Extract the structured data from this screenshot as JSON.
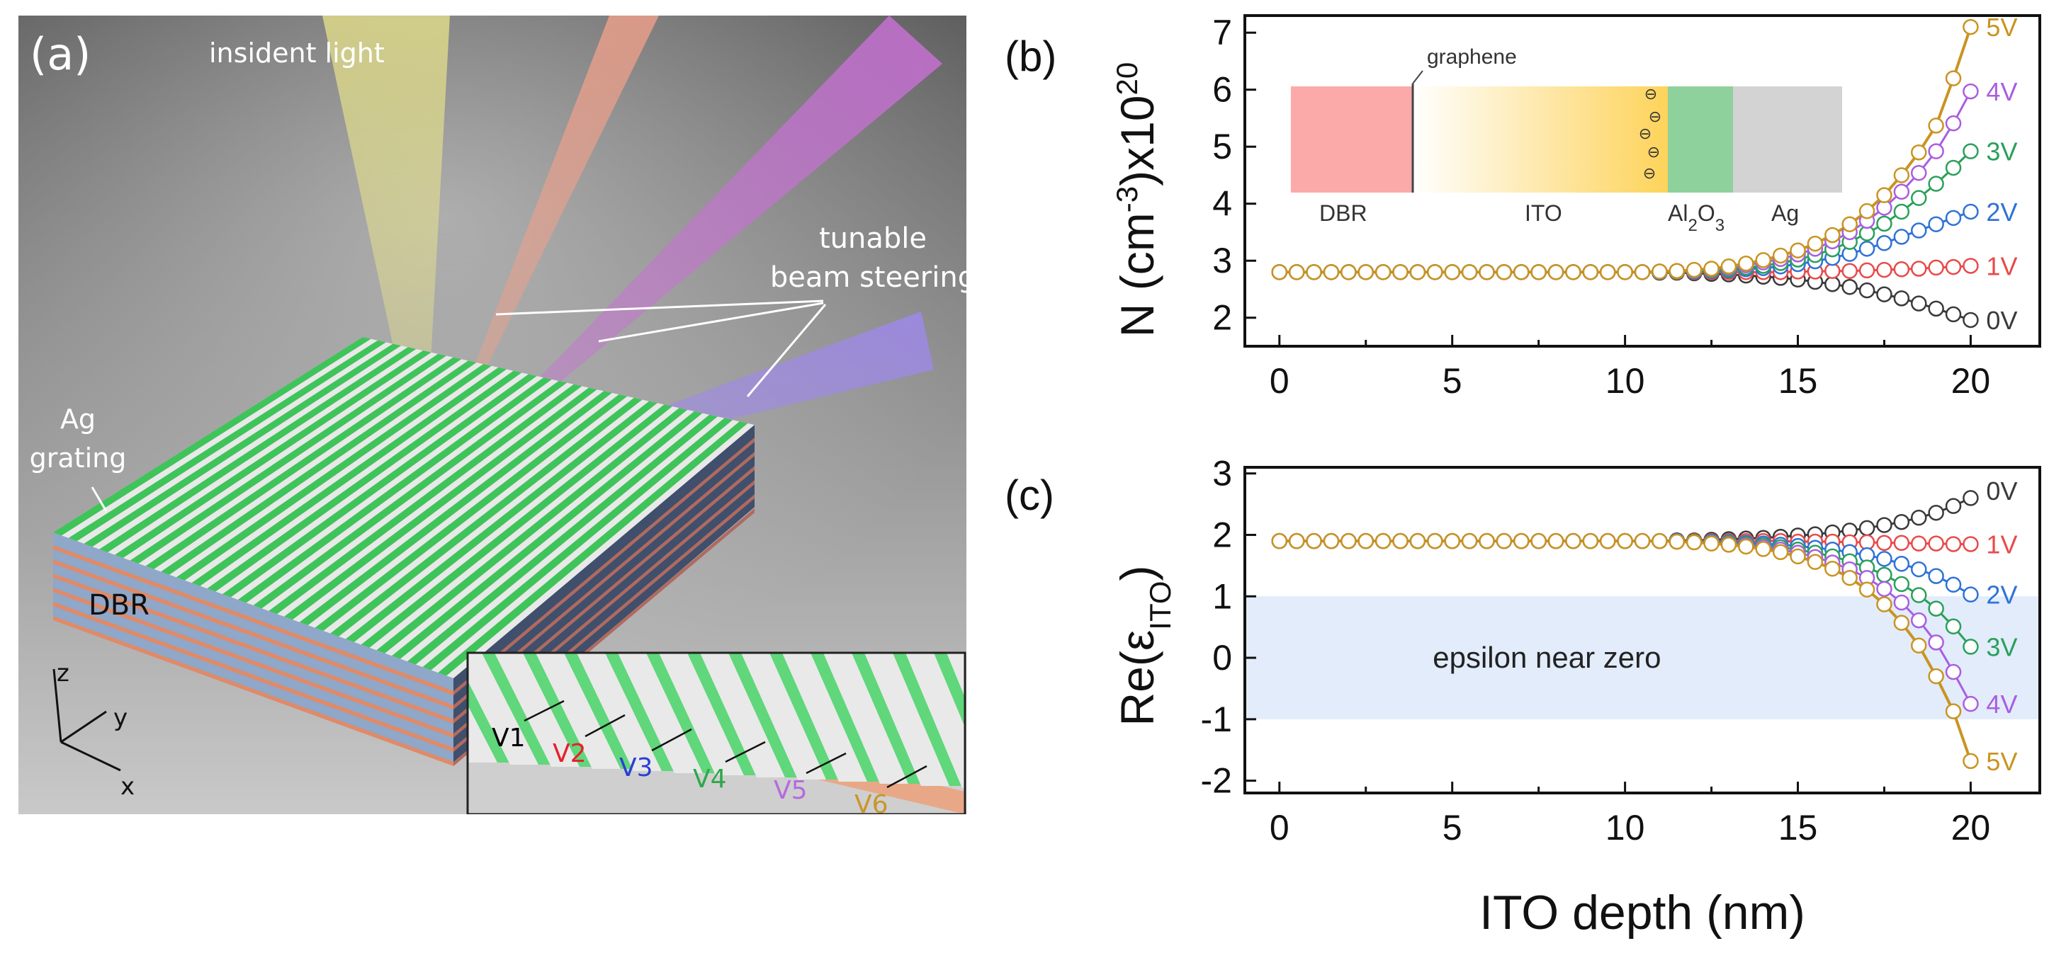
{
  "panel_a": {
    "label": "(a)",
    "incident_light": "insident light",
    "steering_line1": "tunable",
    "steering_line2": "beam steering",
    "ag_line1": "Ag",
    "ag_line2": "grating",
    "dbr": "DBR",
    "axis_z": "z",
    "axis_y": "y",
    "axis_x": "x",
    "inset_voltages": [
      {
        "label": "V1",
        "color": "#000000"
      },
      {
        "label": "V2",
        "color": "#e8202a"
      },
      {
        "label": "V3",
        "color": "#2b3fd6"
      },
      {
        "label": "V4",
        "color": "#2ea84a"
      },
      {
        "label": "V5",
        "color": "#b46be0"
      },
      {
        "label": "V6",
        "color": "#c9962a"
      }
    ]
  },
  "chart_data": [
    {
      "panel": "(b)",
      "type": "line",
      "ylabel_main": "N (cm",
      "ylabel_exp1": "-3",
      "ylabel_mid": ")x10",
      "ylabel_exp2": "20",
      "xlim": [
        -1,
        22
      ],
      "ylim": [
        1.5,
        7.3
      ],
      "xticks": [
        0,
        5,
        10,
        15,
        20
      ],
      "yticks": [
        2,
        3,
        4,
        5,
        6,
        7
      ],
      "x": [
        0,
        0.5,
        1,
        1.5,
        2,
        2.5,
        3,
        3.5,
        4,
        4.5,
        5,
        5.5,
        6,
        6.5,
        7,
        7.5,
        8,
        8.5,
        9,
        9.5,
        10,
        10.5,
        11,
        11.5,
        12,
        12.5,
        13,
        13.5,
        14,
        14.5,
        15,
        15.5,
        16,
        16.5,
        17,
        17.5,
        18,
        18.5,
        19,
        19.5,
        20
      ],
      "series": [
        {
          "name": "0V",
          "color": "#3a3a3a",
          "values": [
            2.8,
            2.8,
            2.8,
            2.8,
            2.8,
            2.8,
            2.8,
            2.8,
            2.8,
            2.8,
            2.8,
            2.8,
            2.8,
            2.8,
            2.8,
            2.8,
            2.8,
            2.8,
            2.8,
            2.8,
            2.8,
            2.8,
            2.79,
            2.79,
            2.78,
            2.77,
            2.76,
            2.74,
            2.72,
            2.7,
            2.67,
            2.63,
            2.59,
            2.54,
            2.48,
            2.41,
            2.34,
            2.25,
            2.16,
            2.06,
            1.96
          ]
        },
        {
          "name": "1V",
          "color": "#e84a4a",
          "values": [
            2.8,
            2.8,
            2.8,
            2.8,
            2.8,
            2.8,
            2.8,
            2.8,
            2.8,
            2.8,
            2.8,
            2.8,
            2.8,
            2.8,
            2.8,
            2.8,
            2.8,
            2.8,
            2.8,
            2.8,
            2.8,
            2.8,
            2.8,
            2.8,
            2.8,
            2.8,
            2.8,
            2.8,
            2.8,
            2.8,
            2.81,
            2.81,
            2.82,
            2.82,
            2.83,
            2.84,
            2.85,
            2.86,
            2.88,
            2.89,
            2.91
          ]
        },
        {
          "name": "2V",
          "color": "#2f73d6",
          "values": [
            2.8,
            2.8,
            2.8,
            2.8,
            2.8,
            2.8,
            2.8,
            2.8,
            2.8,
            2.8,
            2.8,
            2.8,
            2.8,
            2.8,
            2.8,
            2.8,
            2.8,
            2.8,
            2.8,
            2.8,
            2.8,
            2.8,
            2.8,
            2.81,
            2.81,
            2.82,
            2.83,
            2.85,
            2.87,
            2.9,
            2.94,
            2.99,
            3.05,
            3.12,
            3.21,
            3.31,
            3.42,
            3.53,
            3.64,
            3.75,
            3.86
          ]
        },
        {
          "name": "3V",
          "color": "#2aa05a",
          "values": [
            2.8,
            2.8,
            2.8,
            2.8,
            2.8,
            2.8,
            2.8,
            2.8,
            2.8,
            2.8,
            2.8,
            2.8,
            2.8,
            2.8,
            2.8,
            2.8,
            2.8,
            2.8,
            2.8,
            2.8,
            2.8,
            2.8,
            2.81,
            2.81,
            2.82,
            2.83,
            2.85,
            2.88,
            2.91,
            2.96,
            3.02,
            3.1,
            3.2,
            3.33,
            3.48,
            3.65,
            3.86,
            4.1,
            4.35,
            4.63,
            4.92
          ]
        },
        {
          "name": "4V",
          "color": "#a95ee0",
          "values": [
            2.8,
            2.8,
            2.8,
            2.8,
            2.8,
            2.8,
            2.8,
            2.8,
            2.8,
            2.8,
            2.8,
            2.8,
            2.8,
            2.8,
            2.8,
            2.8,
            2.8,
            2.8,
            2.8,
            2.8,
            2.8,
            2.8,
            2.81,
            2.82,
            2.83,
            2.85,
            2.88,
            2.92,
            2.97,
            3.03,
            3.11,
            3.21,
            3.34,
            3.5,
            3.7,
            3.93,
            4.21,
            4.54,
            4.92,
            5.41,
            5.97
          ]
        },
        {
          "name": "5V",
          "color": "#c99420",
          "values": [
            2.8,
            2.8,
            2.8,
            2.8,
            2.8,
            2.8,
            2.8,
            2.8,
            2.8,
            2.8,
            2.8,
            2.8,
            2.8,
            2.8,
            2.8,
            2.8,
            2.8,
            2.8,
            2.8,
            2.8,
            2.8,
            2.8,
            2.81,
            2.82,
            2.84,
            2.86,
            2.9,
            2.95,
            3.01,
            3.09,
            3.18,
            3.3,
            3.45,
            3.64,
            3.87,
            4.15,
            4.5,
            4.9,
            5.37,
            6.2,
            7.1
          ]
        }
      ],
      "inset": {
        "graphene": "graphene",
        "layers": [
          {
            "label": "DBR",
            "color": "#fca9a9"
          },
          {
            "label": "ITO",
            "color": "#fdd35a"
          },
          {
            "label_main": "Al",
            "label_sub1": "2",
            "label_mid": "O",
            "label_sub2": "3",
            "color": "#8fd19c"
          },
          {
            "label": "Ag",
            "color": "#d3d3d3"
          }
        ],
        "charge_symbol": "⊖"
      }
    },
    {
      "panel": "(c)",
      "type": "line",
      "ylabel_main": "Re(ε",
      "ylabel_sub": "ITO",
      "ylabel_end": ")",
      "xlabel": "ITO depth (nm)",
      "xlim": [
        -1,
        22
      ],
      "ylim": [
        -2.2,
        3.1
      ],
      "xticks": [
        0,
        5,
        10,
        15,
        20
      ],
      "yticks": [
        -2,
        -1,
        0,
        1,
        2,
        3
      ],
      "band": {
        "from": -1,
        "to": 1,
        "label": "epsilon near zero",
        "color": "#e2ecfb"
      },
      "x": [
        0,
        0.5,
        1,
        1.5,
        2,
        2.5,
        3,
        3.5,
        4,
        4.5,
        5,
        5.5,
        6,
        6.5,
        7,
        7.5,
        8,
        8.5,
        9,
        9.5,
        10,
        10.5,
        11,
        11.5,
        12,
        12.5,
        13,
        13.5,
        14,
        14.5,
        15,
        15.5,
        16,
        16.5,
        17,
        17.5,
        18,
        18.5,
        19,
        19.5,
        20
      ],
      "series": [
        {
          "name": "0V",
          "color": "#3a3a3a",
          "values": [
            1.9,
            1.9,
            1.9,
            1.9,
            1.9,
            1.9,
            1.9,
            1.9,
            1.9,
            1.9,
            1.9,
            1.9,
            1.9,
            1.9,
            1.9,
            1.9,
            1.9,
            1.9,
            1.9,
            1.9,
            1.9,
            1.9,
            1.9,
            1.91,
            1.91,
            1.92,
            1.93,
            1.94,
            1.95,
            1.97,
            1.99,
            2.01,
            2.04,
            2.07,
            2.11,
            2.16,
            2.21,
            2.28,
            2.36,
            2.47,
            2.6
          ]
        },
        {
          "name": "1V",
          "color": "#e84a4a",
          "values": [
            1.9,
            1.9,
            1.9,
            1.9,
            1.9,
            1.9,
            1.9,
            1.9,
            1.9,
            1.9,
            1.9,
            1.9,
            1.9,
            1.9,
            1.9,
            1.9,
            1.9,
            1.9,
            1.9,
            1.9,
            1.9,
            1.9,
            1.9,
            1.9,
            1.9,
            1.9,
            1.9,
            1.9,
            1.9,
            1.9,
            1.89,
            1.89,
            1.89,
            1.88,
            1.88,
            1.87,
            1.87,
            1.86,
            1.86,
            1.85,
            1.85
          ]
        },
        {
          "name": "2V",
          "color": "#2f73d6",
          "values": [
            1.9,
            1.9,
            1.9,
            1.9,
            1.9,
            1.9,
            1.9,
            1.9,
            1.9,
            1.9,
            1.9,
            1.9,
            1.9,
            1.9,
            1.9,
            1.9,
            1.9,
            1.9,
            1.9,
            1.9,
            1.9,
            1.9,
            1.9,
            1.9,
            1.89,
            1.89,
            1.88,
            1.87,
            1.86,
            1.84,
            1.82,
            1.79,
            1.76,
            1.72,
            1.67,
            1.61,
            1.53,
            1.44,
            1.33,
            1.19,
            1.03
          ]
        },
        {
          "name": "3V",
          "color": "#2aa05a",
          "values": [
            1.9,
            1.9,
            1.9,
            1.9,
            1.9,
            1.9,
            1.9,
            1.9,
            1.9,
            1.9,
            1.9,
            1.9,
            1.9,
            1.9,
            1.9,
            1.9,
            1.9,
            1.9,
            1.9,
            1.9,
            1.9,
            1.9,
            1.9,
            1.89,
            1.89,
            1.88,
            1.87,
            1.85,
            1.83,
            1.8,
            1.76,
            1.71,
            1.65,
            1.57,
            1.47,
            1.35,
            1.2,
            1.02,
            0.8,
            0.51,
            0.18
          ]
        },
        {
          "name": "4V",
          "color": "#a95ee0",
          "values": [
            1.9,
            1.9,
            1.9,
            1.9,
            1.9,
            1.9,
            1.9,
            1.9,
            1.9,
            1.9,
            1.9,
            1.9,
            1.9,
            1.9,
            1.9,
            1.9,
            1.9,
            1.9,
            1.9,
            1.9,
            1.9,
            1.9,
            1.9,
            1.89,
            1.88,
            1.87,
            1.85,
            1.83,
            1.8,
            1.76,
            1.71,
            1.64,
            1.55,
            1.44,
            1.3,
            1.12,
            0.9,
            0.61,
            0.25,
            -0.23,
            -0.75
          ]
        },
        {
          "name": "5V",
          "color": "#c99420",
          "values": [
            1.9,
            1.9,
            1.9,
            1.9,
            1.9,
            1.9,
            1.9,
            1.9,
            1.9,
            1.9,
            1.9,
            1.9,
            1.9,
            1.9,
            1.9,
            1.9,
            1.9,
            1.9,
            1.9,
            1.9,
            1.9,
            1.9,
            1.9,
            1.89,
            1.88,
            1.86,
            1.84,
            1.81,
            1.77,
            1.72,
            1.65,
            1.56,
            1.45,
            1.3,
            1.11,
            0.87,
            0.57,
            0.2,
            -0.3,
            -0.87,
            -1.68
          ]
        }
      ]
    }
  ]
}
